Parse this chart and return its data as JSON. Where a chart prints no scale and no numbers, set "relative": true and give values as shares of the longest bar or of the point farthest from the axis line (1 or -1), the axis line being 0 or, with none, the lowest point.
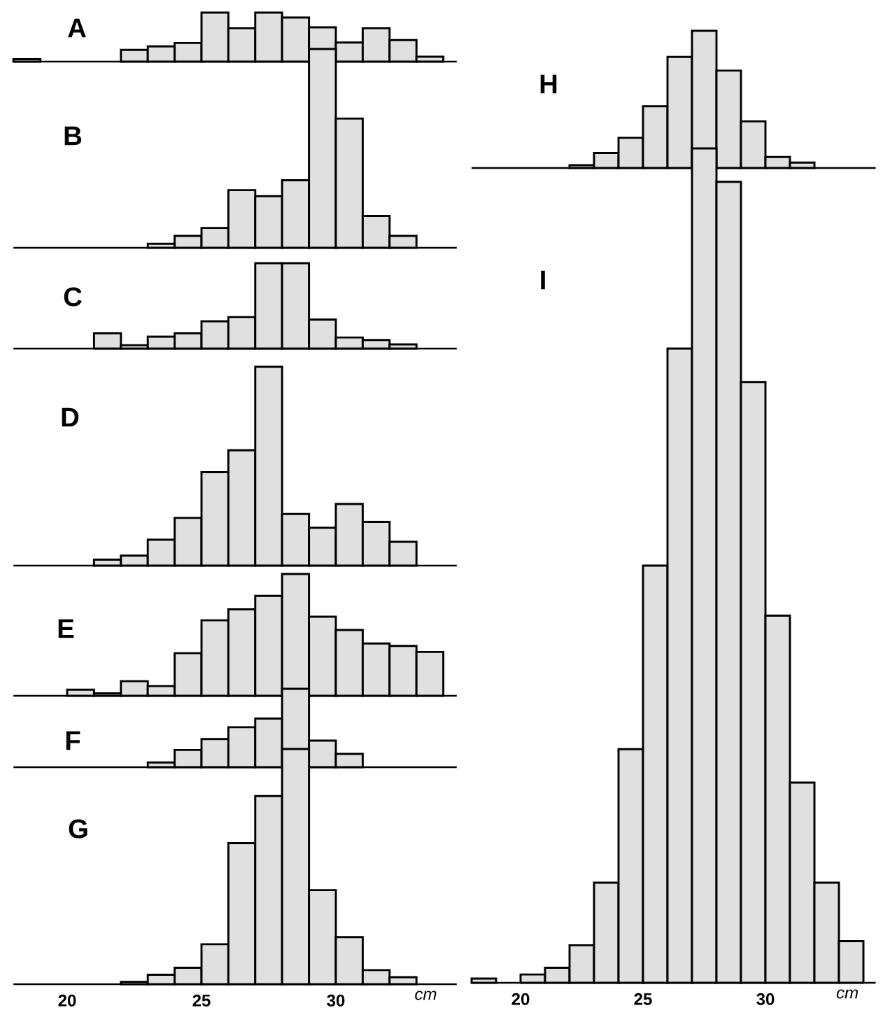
{
  "chart_data": [
    {
      "type": "bar",
      "title": "A",
      "x": [
        18.5,
        22.5,
        23.5,
        24.5,
        25.5,
        26.5,
        27.5,
        28.5,
        29.5,
        30.5,
        31.5,
        32.5,
        33.5
      ],
      "values": [
        0.05,
        0.24,
        0.31,
        0.38,
        1,
        0.68,
        1,
        0.9,
        0.7,
        0.39,
        0.68,
        0.44,
        0.1
      ],
      "relative": true,
      "color": "#000000",
      "xlim": [
        18,
        34.5
      ],
      "tick_labels": false
    },
    {
      "type": "bar",
      "title": "B",
      "x": [
        23.5,
        24.5,
        25.5,
        26.5,
        27.5,
        28.5,
        29.5,
        30.5,
        31.5,
        32.5
      ],
      "values": [
        0.02,
        0.06,
        0.1,
        0.29,
        0.26,
        0.34,
        1,
        0.65,
        0.16,
        0.06
      ],
      "relative": true,
      "color": "#000000",
      "xlim": [
        18,
        34.5
      ],
      "tick_labels": false
    },
    {
      "type": "bar",
      "title": "C",
      "x": [
        21.5,
        22.5,
        23.5,
        24.5,
        25.5,
        26.5,
        27.5,
        28.5,
        29.5,
        30.5,
        31.5,
        32.5
      ],
      "values": [
        0.18,
        0.04,
        0.14,
        0.18,
        0.32,
        0.37,
        1,
        1,
        0.34,
        0.13,
        0.1,
        0.05
      ],
      "relative": true,
      "color": "#000000",
      "xlim": [
        18,
        34.5
      ],
      "tick_labels": false
    },
    {
      "type": "bar",
      "title": "D",
      "x": [
        21.5,
        22.5,
        23.5,
        24.5,
        25.5,
        26.5,
        27.5,
        28.5,
        29.5,
        30.5,
        31.5,
        32.5
      ],
      "values": [
        0.03,
        0.05,
        0.13,
        0.24,
        0.47,
        0.58,
        1,
        0.26,
        0.19,
        0.31,
        0.22,
        0.12
      ],
      "relative": true,
      "color": "#000000",
      "xlim": [
        18,
        34.5
      ],
      "tick_labels": false
    },
    {
      "type": "bar",
      "title": "E",
      "x": [
        20.5,
        21.5,
        22.5,
        23.5,
        24.5,
        25.5,
        26.5,
        27.5,
        28.5,
        29.5,
        30.5,
        31.5,
        32.5,
        33.5
      ],
      "values": [
        0.05,
        0.02,
        0.12,
        0.08,
        0.35,
        0.62,
        0.71,
        0.82,
        1,
        0.65,
        0.54,
        0.43,
        0.41,
        0.36
      ],
      "relative": true,
      "color": "#000000",
      "xlim": [
        18,
        34.5
      ],
      "tick_labels": false
    },
    {
      "type": "bar",
      "title": "F",
      "x": [
        23.5,
        24.5,
        25.5,
        26.5,
        27.5,
        28.5,
        29.5,
        30.5
      ],
      "values": [
        0.06,
        0.22,
        0.36,
        0.51,
        0.62,
        1,
        0.34,
        0.17
      ],
      "relative": true,
      "color": "#000000",
      "xlim": [
        18,
        34.5
      ],
      "tick_labels": false
    },
    {
      "type": "bar",
      "title": "G",
      "x": [
        22.5,
        23.5,
        24.5,
        25.5,
        26.5,
        27.5,
        28.5,
        29.5,
        30.5,
        31.5,
        32.5
      ],
      "values": [
        0.01,
        0.04,
        0.07,
        0.17,
        0.6,
        0.8,
        1,
        0.4,
        0.2,
        0.06,
        0.03
      ],
      "relative": true,
      "color": "#000000",
      "xlim": [
        18,
        34.5
      ],
      "xticks": [
        20,
        25,
        30
      ],
      "xlabel": "cm",
      "tick_labels": "x"
    },
    {
      "type": "bar",
      "title": "H",
      "x": [
        22.5,
        23.5,
        24.5,
        25.5,
        26.5,
        27.5,
        28.5,
        29.5,
        30.5,
        31.5
      ],
      "values": [
        0.02,
        0.11,
        0.22,
        0.45,
        0.81,
        1,
        0.71,
        0.34,
        0.08,
        0.04
      ],
      "relative": true,
      "color": "#000000",
      "xlim": [
        18,
        34.5
      ],
      "tick_labels": false
    },
    {
      "type": "bar",
      "title": "I",
      "x": [
        18.5,
        20.5,
        21.5,
        22.5,
        23.5,
        24.5,
        25.5,
        26.5,
        27.5,
        28.5,
        29.5,
        30.5,
        31.5,
        32.5,
        33.5
      ],
      "values": [
        0.005,
        0.01,
        0.018,
        0.045,
        0.12,
        0.28,
        0.5,
        0.76,
        1,
        0.96,
        0.72,
        0.44,
        0.24,
        0.12,
        0.05
      ],
      "relative": true,
      "color": "#000000",
      "xlim": [
        18,
        34.5
      ],
      "xticks": [
        20,
        25,
        30
      ],
      "xlabel": "cm",
      "tick_labels": "x"
    }
  ]
}
